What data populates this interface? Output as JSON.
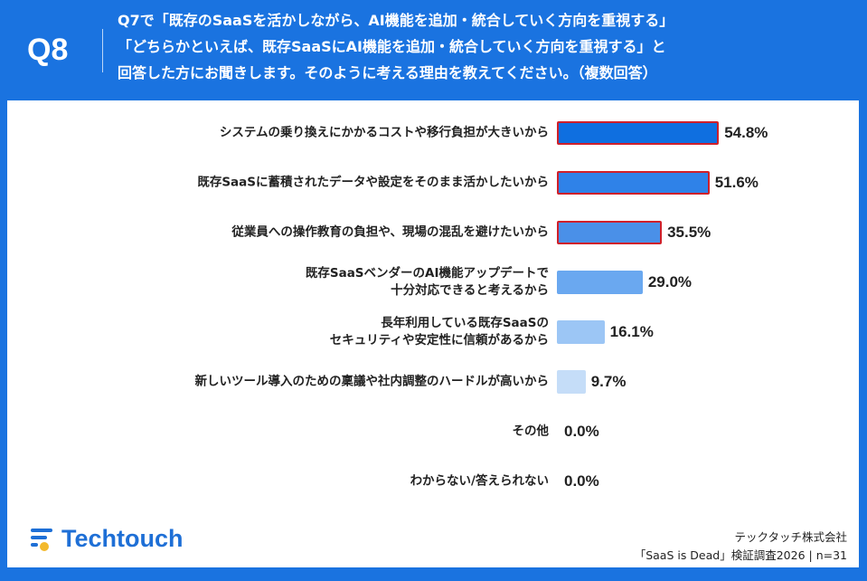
{
  "header": {
    "q_number": "Q8",
    "title_lines": [
      "Q7で「既存のSaaSを活かしながら、AI機能を追加・統合していく方向を重視する」",
      "「どちらかといえば、既存SaaSにAI機能を追加・統合していく方向を重視する」と",
      "回答した方にお聞きします。そのように考える理由を教えてください。（複数回答）"
    ]
  },
  "chart_data": {
    "type": "bar",
    "orientation": "horizontal",
    "categories": [
      "システムの乗り換えにかかるコストや移行負担が大きいから",
      "既存SaaSに蓄積されたデータや設定をそのまま活かしたいから",
      "従業員への操作教育の負担や、現場の混乱を避けたいから",
      "既存SaaSベンダーのAI機能アップデートで\n十分対応できると考えるから",
      "長年利用している既存SaaSの\nセキュリティや安定性に信頼があるから",
      "新しいツール導入のための稟議や社内調整のハードルが高いから",
      "その他",
      "わからない/答えられない"
    ],
    "values": [
      54.8,
      51.6,
      35.5,
      29.0,
      16.1,
      9.7,
      0.0,
      0.0
    ],
    "value_labels": [
      "54.8%",
      "51.6%",
      "35.5%",
      "29.0%",
      "16.1%",
      "9.7%",
      "0.0%",
      "0.0%"
    ],
    "highlighted": [
      true,
      true,
      true,
      false,
      false,
      false,
      false,
      false
    ],
    "colors": [
      "#0f6fe0",
      "#2f82e8",
      "#4a90e8",
      "#6aa8f0",
      "#9cc6f5",
      "#c5ddf8",
      "#c5ddf8",
      "#c5ddf8"
    ],
    "highlight_color": "#d0202a",
    "unit": "%",
    "xlim": [
      0,
      100
    ]
  },
  "footer": {
    "brand": "Techtouch",
    "company": "テックタッチ株式会社",
    "survey": "「SaaS is Dead」検証調査2026 | n=31"
  }
}
